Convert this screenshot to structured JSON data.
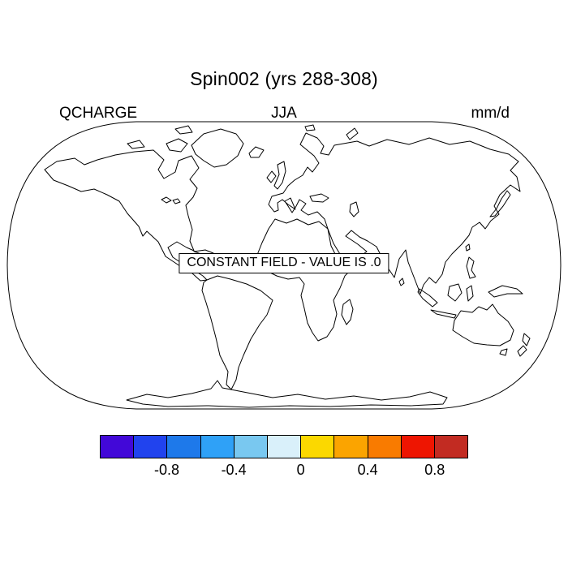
{
  "title": "Spin002 (yrs 288-308)",
  "header": {
    "variable": "QCHARGE",
    "season": "JJA",
    "units": "mm/d"
  },
  "map": {
    "annotation": "CONSTANT FIELD - VALUE IS .0"
  },
  "chart_data": {
    "type": "heatmap",
    "title": "Spin002 (yrs 288-308)",
    "variable": "QCHARGE",
    "season": "JJA",
    "units": "mm/d",
    "projection": "robinson-world-map",
    "annotation": "CONSTANT FIELD - VALUE IS .0",
    "field_constant_value": 0,
    "colorbar": {
      "orientation": "horizontal",
      "n_cells": 11,
      "colors": [
        "#4208D8",
        "#2143EE",
        "#1E79EA",
        "#2FA1F7",
        "#79C8F0",
        "#D9F0FA",
        "#FBD800",
        "#FBA400",
        "#F97B00",
        "#EE1501",
        "#C22B22"
      ],
      "tick_labels": [
        "-0.8",
        "-0.4",
        "0",
        "0.4",
        "0.8"
      ],
      "tick_boundary_indices": [
        2,
        4,
        6,
        8,
        10
      ]
    }
  }
}
